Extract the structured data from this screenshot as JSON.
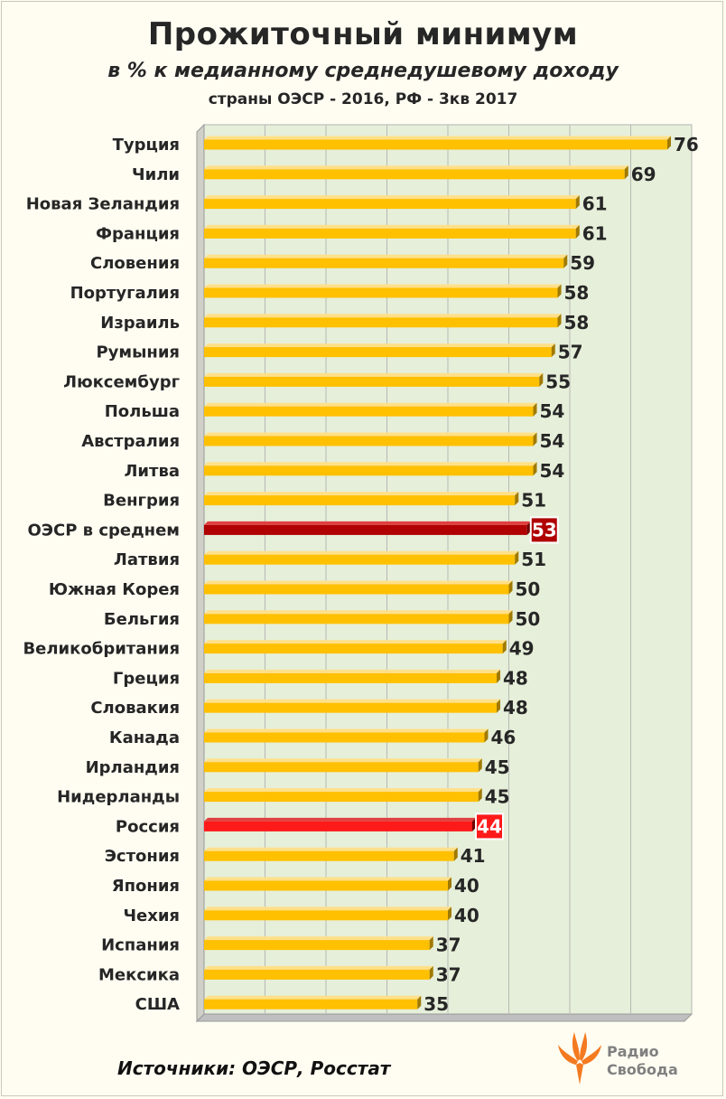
{
  "chart_data": {
    "type": "bar",
    "orientation": "horizontal",
    "title": "Прожиточный минимум",
    "subtitle": "в % к медианному среднедушевому доходу",
    "note": "страны ОЭСР - 2016, РФ - 3кв 2017",
    "categories": [
      "Турция",
      "Чили",
      "Новая Зеландия",
      "Франция",
      "Словения",
      "Португалия",
      "Израиль",
      "Румыния",
      "Люксембург",
      "Польша",
      "Австралия",
      "Литва",
      "Венгрия",
      "ОЭСР в среднем",
      "Латвия",
      "Южная Корея",
      "Бельгия",
      "Великобритания",
      "Греция",
      "Словакия",
      "Канада",
      "Ирландия",
      "Нидерланды",
      "Россия",
      "Эстония",
      "Япония",
      "Чехия",
      "Испания",
      "Мексика",
      "США"
    ],
    "values": [
      76,
      69,
      61,
      61,
      59,
      58,
      58,
      57,
      55,
      54,
      54,
      54,
      51,
      53,
      51,
      50,
      50,
      49,
      48,
      48,
      46,
      45,
      45,
      44,
      41,
      40,
      40,
      37,
      37,
      35
    ],
    "highlights": {
      "ОЭСР в среднем": "#b00000",
      "Россия": "#ff1a1a"
    },
    "default_color": "#ffc000",
    "xlim": [
      0,
      80
    ],
    "grid": true,
    "background": "#e6efd9"
  },
  "footer": {
    "source": "Источники: ОЭСР, Росстат",
    "logo_line1": "Радио",
    "logo_line2": "Свобода",
    "logo_color": "#f47a20"
  }
}
